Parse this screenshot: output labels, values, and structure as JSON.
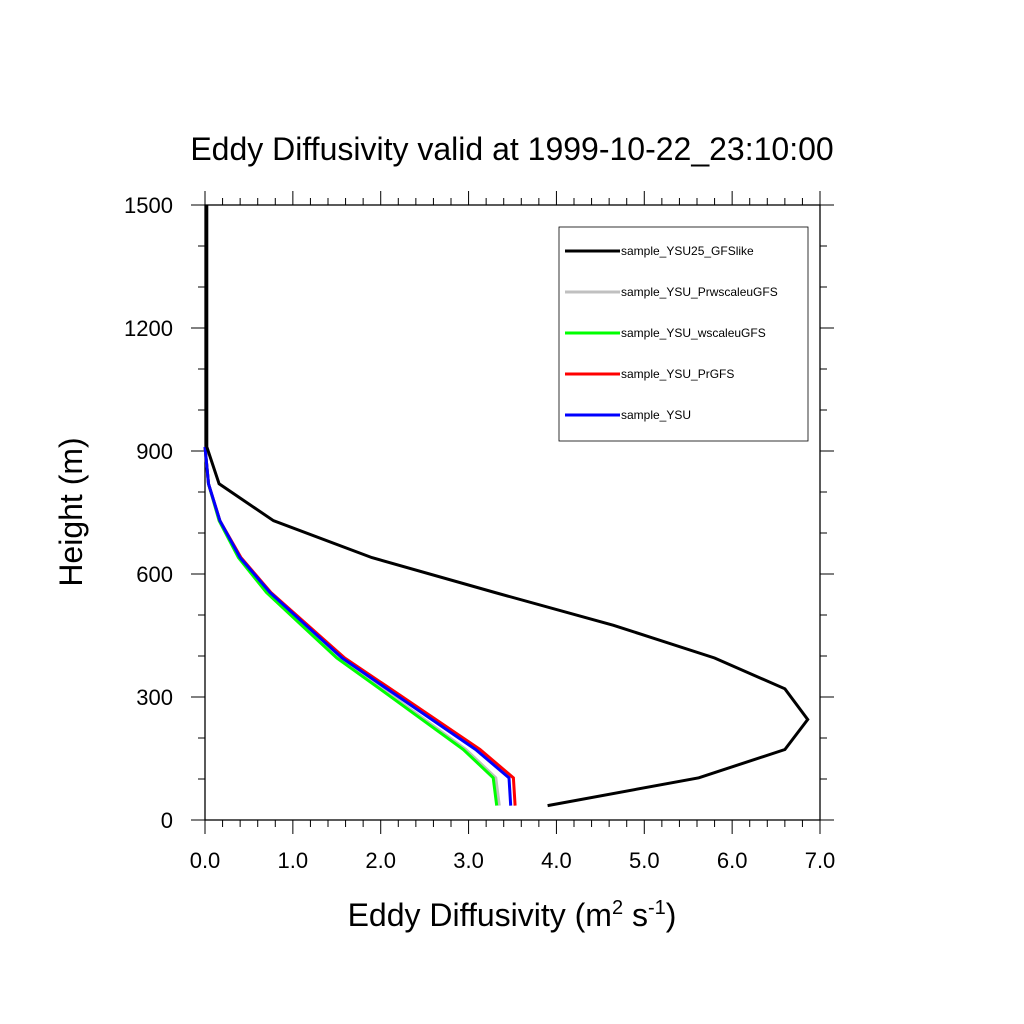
{
  "chart_data": {
    "type": "line",
    "title": "Eddy Diffusivity valid at 1999-10-22_23:10:00",
    "xlabel": {
      "base": "Eddy Diffusivity (m",
      "sup1": "2",
      "mid": " s",
      "sup2": "-1",
      "end": ")"
    },
    "ylabel": "Height (m)",
    "xlim": [
      0,
      7
    ],
    "ylim": [
      0,
      1500
    ],
    "x_ticks": [
      0,
      1,
      2,
      3,
      4,
      5,
      6,
      7
    ],
    "x_tick_labels": [
      "0.0",
      "1.0",
      "2.0",
      "3.0",
      "4.0",
      "5.0",
      "6.0",
      "7.0"
    ],
    "y_ticks": [
      0,
      300,
      600,
      900,
      1200,
      1500
    ],
    "y_tick_labels": [
      "0",
      "300",
      "600",
      "900",
      "1200",
      "1500"
    ],
    "grid": false,
    "legend": "top-right",
    "series": [
      {
        "name": "sample_YSU25_GFSlike",
        "color": "#000000",
        "x": [
          3.9,
          5.62,
          6.6,
          6.86,
          6.6,
          5.8,
          4.65,
          3.3,
          1.9,
          0.78,
          0.16,
          0.02,
          0.02,
          0.02,
          0.02,
          0.02
        ],
        "y": [
          35,
          103,
          172,
          245,
          320,
          395,
          475,
          555,
          640,
          730,
          820,
          910,
          1000,
          1200,
          1400,
          1500
        ]
      },
      {
        "name": "sample_YSU_PrwscaleuGFS",
        "color": "#c0c0c0",
        "x": [
          3.35,
          3.31,
          2.97,
          2.02,
          1.53,
          1.13,
          0.72,
          0.4,
          0.17,
          0.04,
          0.0
        ],
        "y": [
          35,
          103,
          172,
          320,
          395,
          475,
          555,
          640,
          730,
          820,
          910
        ]
      },
      {
        "name": "sample_YSU_wscaleuGFS",
        "color": "#00ff00",
        "x": [
          3.32,
          3.28,
          2.94,
          1.99,
          1.5,
          1.1,
          0.7,
          0.38,
          0.16,
          0.04,
          0.0
        ],
        "y": [
          35,
          103,
          172,
          320,
          395,
          475,
          555,
          640,
          730,
          820,
          910
        ]
      },
      {
        "name": "sample_YSU_PrGFS",
        "color": "#ff0000",
        "x": [
          3.53,
          3.51,
          3.13,
          2.11,
          1.59,
          1.17,
          0.75,
          0.41,
          0.17,
          0.04,
          0.0
        ],
        "y": [
          35,
          103,
          172,
          320,
          395,
          475,
          555,
          640,
          730,
          820,
          910
        ]
      },
      {
        "name": "sample_YSU",
        "color": "#0000ff",
        "x": [
          3.48,
          3.46,
          3.08,
          2.07,
          1.56,
          1.15,
          0.74,
          0.4,
          0.17,
          0.04,
          0.0
        ],
        "y": [
          35,
          103,
          172,
          320,
          395,
          475,
          555,
          640,
          730,
          820,
          910
        ]
      }
    ]
  }
}
